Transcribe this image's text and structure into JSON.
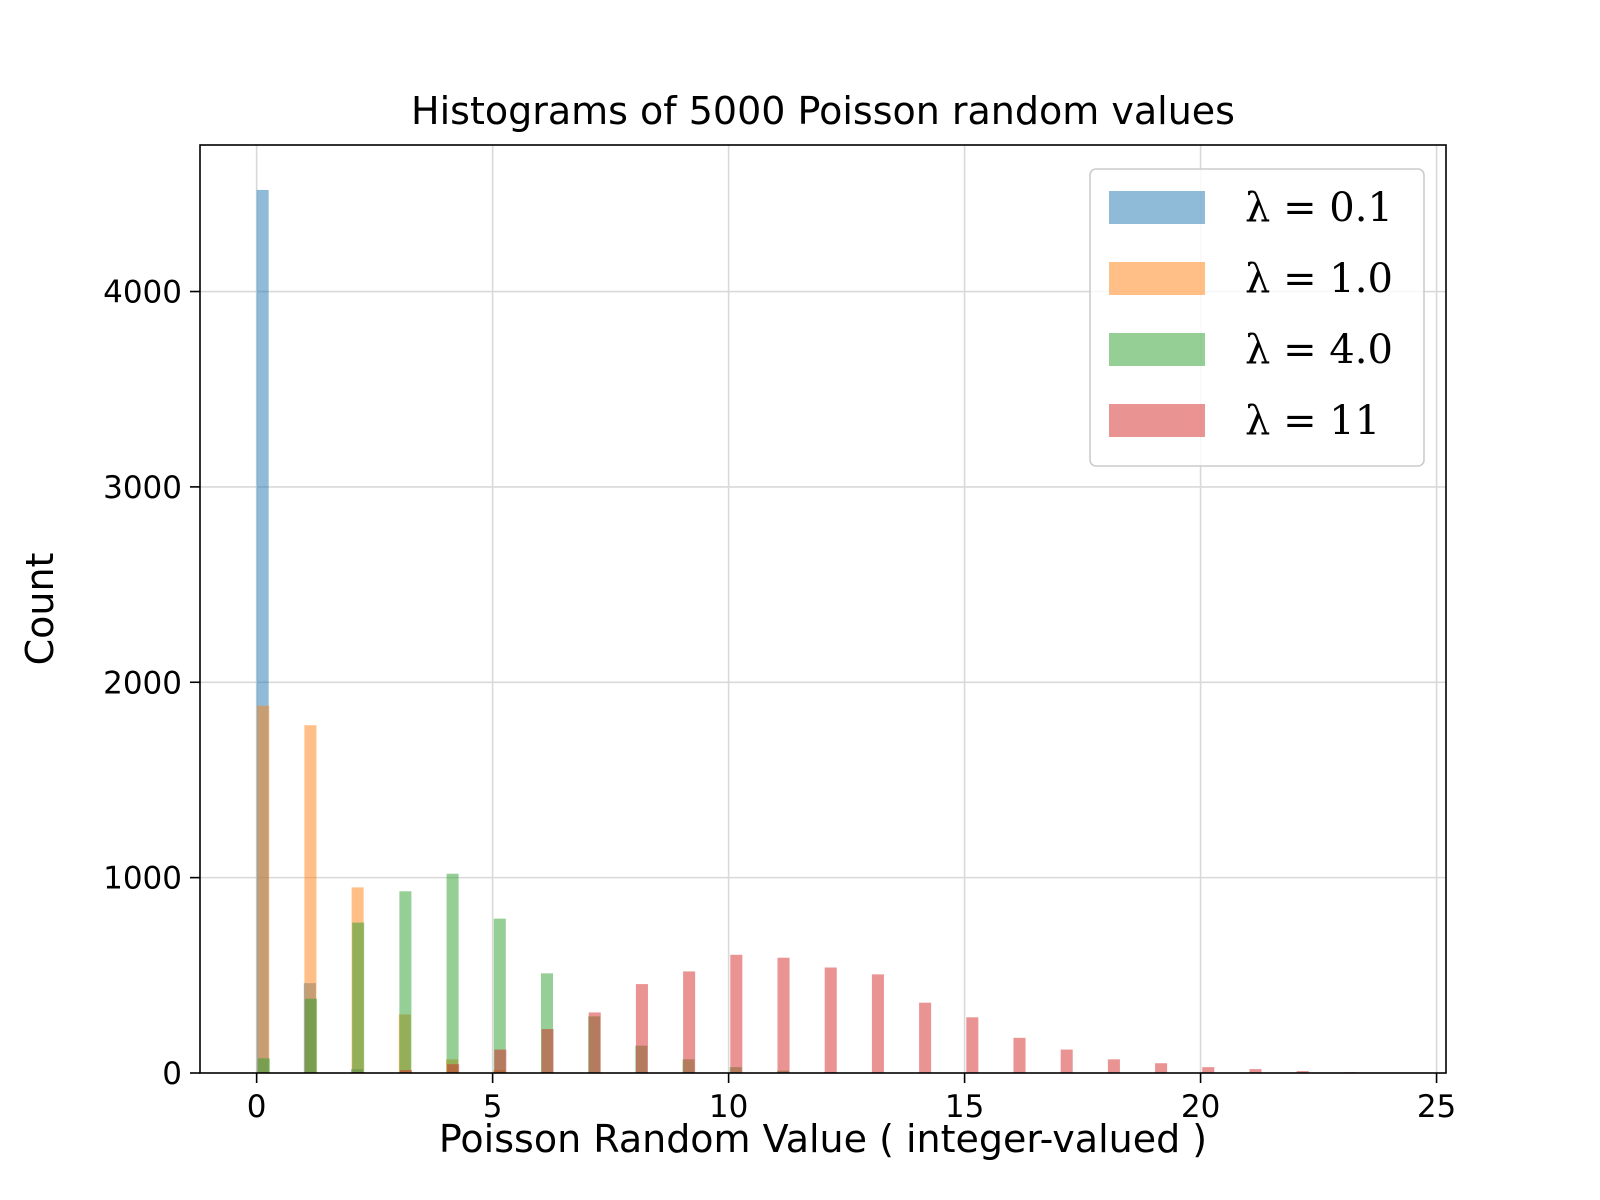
{
  "chart_data": {
    "type": "bar",
    "title": "Histograms of 5000 Poisson random values",
    "xlabel": "Poisson Random Value ( integer-valued )",
    "ylabel": "Count",
    "xlim": [
      -1.2,
      25.2
    ],
    "ylim": [
      0,
      4750
    ],
    "xticks": [
      0,
      5,
      10,
      15,
      20,
      25
    ],
    "yticks": [
      0,
      1000,
      2000,
      3000,
      4000
    ],
    "grid": true,
    "legend_position": "top-right",
    "series": [
      {
        "name": "λ = 0.1",
        "color": "#1f77b4",
        "bars": [
          {
            "x": 0,
            "count": 4520
          },
          {
            "x": 1,
            "count": 460
          },
          {
            "x": 2,
            "count": 20
          }
        ]
      },
      {
        "name": "λ = 1.0",
        "color": "#ff7f0e",
        "bars": [
          {
            "x": 0,
            "count": 1880
          },
          {
            "x": 1,
            "count": 1780
          },
          {
            "x": 2,
            "count": 950
          },
          {
            "x": 3,
            "count": 300
          },
          {
            "x": 4,
            "count": 70
          },
          {
            "x": 5,
            "count": 15
          },
          {
            "x": 6,
            "count": 5
          }
        ]
      },
      {
        "name": "λ = 4.0",
        "color": "#2ca02c",
        "bars": [
          {
            "x": 0,
            "count": 75
          },
          {
            "x": 1,
            "count": 380
          },
          {
            "x": 2,
            "count": 770
          },
          {
            "x": 3,
            "count": 930
          },
          {
            "x": 4,
            "count": 1020
          },
          {
            "x": 5,
            "count": 790
          },
          {
            "x": 6,
            "count": 510
          },
          {
            "x": 7,
            "count": 290
          },
          {
            "x": 8,
            "count": 140
          },
          {
            "x": 9,
            "count": 70
          },
          {
            "x": 10,
            "count": 30
          },
          {
            "x": 11,
            "count": 12
          },
          {
            "x": 12,
            "count": 4
          }
        ]
      },
      {
        "name": "λ = 11",
        "color": "#d62728",
        "bars": [
          {
            "x": 1,
            "count": 2
          },
          {
            "x": 2,
            "count": 5
          },
          {
            "x": 3,
            "count": 15
          },
          {
            "x": 4,
            "count": 45
          },
          {
            "x": 5,
            "count": 120
          },
          {
            "x": 6,
            "count": 225
          },
          {
            "x": 7,
            "count": 310
          },
          {
            "x": 8,
            "count": 455
          },
          {
            "x": 9,
            "count": 520
          },
          {
            "x": 10,
            "count": 605
          },
          {
            "x": 11,
            "count": 590
          },
          {
            "x": 12,
            "count": 540
          },
          {
            "x": 13,
            "count": 505
          },
          {
            "x": 14,
            "count": 360
          },
          {
            "x": 15,
            "count": 285
          },
          {
            "x": 16,
            "count": 180
          },
          {
            "x": 17,
            "count": 120
          },
          {
            "x": 18,
            "count": 70
          },
          {
            "x": 19,
            "count": 50
          },
          {
            "x": 20,
            "count": 30
          },
          {
            "x": 21,
            "count": 20
          },
          {
            "x": 22,
            "count": 10
          },
          {
            "x": 23,
            "count": 4
          }
        ]
      }
    ]
  }
}
